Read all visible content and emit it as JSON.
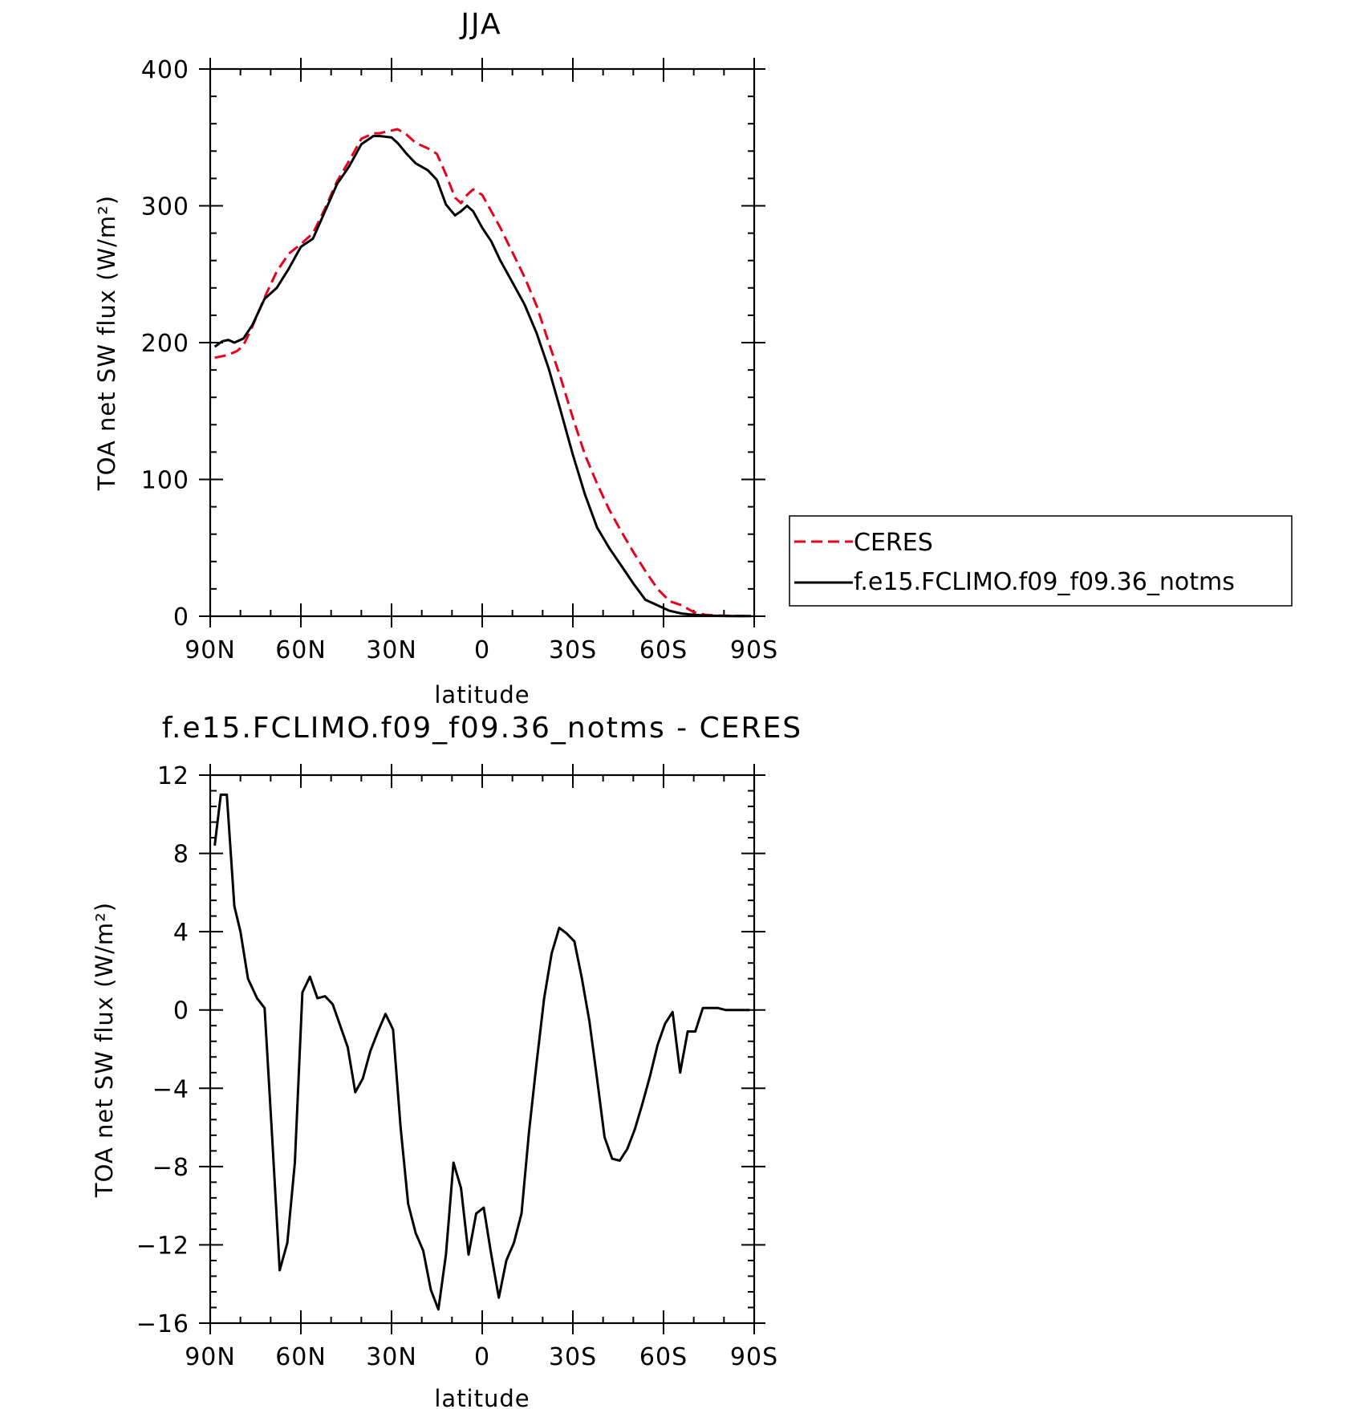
{
  "chart_data": [
    {
      "type": "line",
      "title": "JJA",
      "xlabel": "latitude",
      "ylabel": "TOA net SW flux (W/m²)",
      "xlim": [
        90,
        -90
      ],
      "ylim": [
        0,
        400
      ],
      "x_tick_labels": [
        "90N",
        "60N",
        "30N",
        "0",
        "30S",
        "60S",
        "90S"
      ],
      "x_tick_values": [
        90,
        60,
        30,
        0,
        -30,
        -60,
        -90
      ],
      "y_tick_labels": [
        "0",
        "100",
        "200",
        "300",
        "400"
      ],
      "y_tick_values": [
        0,
        100,
        200,
        300,
        400
      ],
      "legend_position": "right, outside plot",
      "series": [
        {
          "name": "CERES",
          "color": "#e8001c",
          "dash": "dashed",
          "x": [
            88.5,
            84,
            81,
            79,
            76,
            72,
            68,
            64,
            60,
            56,
            52,
            48,
            44,
            40,
            36,
            34,
            30,
            28,
            25,
            22,
            18,
            15,
            12,
            9,
            7,
            5,
            3,
            0,
            -3,
            -6,
            -10,
            -14,
            -18,
            -22,
            -26,
            -30,
            -34,
            -38,
            -42,
            -46,
            -50,
            -54,
            -58,
            -62,
            -66,
            -70,
            -74,
            -78,
            -82,
            -86,
            -89
          ],
          "y": [
            189,
            191,
            194,
            198,
            212,
            233,
            252,
            265,
            272,
            280,
            298,
            318,
            333,
            349,
            353,
            353,
            355,
            356,
            352,
            346,
            342,
            338,
            323,
            306,
            302,
            308,
            312,
            308,
            296,
            284,
            266,
            248,
            227,
            200,
            174,
            145,
            118,
            97,
            78,
            62,
            47,
            33,
            20,
            11,
            8,
            3,
            1,
            0.5,
            0.3,
            0.2,
            0.2
          ],
          "values_note": null
        },
        {
          "name": "f.e15.FCLIMO.f09_f09.36_notms",
          "color": "#000000",
          "dash": "solid",
          "x": [
            88.5,
            86,
            84,
            82,
            79,
            76,
            72,
            68,
            64,
            60,
            56,
            52,
            48,
            44,
            40,
            36,
            34,
            30,
            28,
            25,
            22,
            18,
            15,
            12,
            9,
            7,
            5,
            3,
            0,
            -3,
            -6,
            -10,
            -14,
            -18,
            -22,
            -26,
            -30,
            -34,
            -38,
            -42,
            -46,
            -50,
            -54,
            -58,
            -62,
            -66,
            -70,
            -74,
            -78,
            -82,
            -86,
            -89
          ],
          "y": [
            197,
            201,
            202,
            200,
            203,
            213,
            232,
            240,
            254,
            270,
            276,
            296,
            316,
            329,
            345,
            351,
            351,
            350,
            346,
            338,
            331,
            326,
            319,
            301,
            293,
            296,
            300,
            296,
            284,
            274,
            260,
            244,
            228,
            207,
            181,
            150,
            118,
            89,
            65,
            50,
            37,
            24,
            12,
            8,
            4,
            2,
            1,
            0.5,
            0.3,
            0.2,
            0.2,
            0.2
          ],
          "values_note": null
        }
      ]
    },
    {
      "type": "line",
      "title": "f.e15.FCLIMO.f09_f09.36_notms - CERES",
      "xlabel": "latitude",
      "ylabel": "TOA net SW flux (W/m²)",
      "xlim": [
        90,
        -90
      ],
      "ylim": [
        -16,
        12
      ],
      "x_tick_labels": [
        "90N",
        "60N",
        "30N",
        "0",
        "30S",
        "60S",
        "90S"
      ],
      "x_tick_values": [
        90,
        60,
        30,
        0,
        -30,
        -60,
        -90
      ],
      "y_tick_labels": [
        "−16",
        "−12",
        "−8",
        "−4",
        "0",
        "4",
        "8",
        "12"
      ],
      "y_tick_values": [
        -16,
        -12,
        -8,
        -4,
        0,
        4,
        8,
        12
      ],
      "series": [
        {
          "name": "",
          "color": "#000000",
          "dash": "solid",
          "x": [
            88.5,
            86.5,
            84.5,
            82,
            80,
            77.5,
            74.5,
            72,
            69.5,
            67,
            64.5,
            62,
            59.5,
            57,
            54.5,
            52,
            49.5,
            47,
            44.5,
            42,
            39.5,
            37,
            34.5,
            32,
            29.5,
            27,
            24.5,
            22,
            19.5,
            17,
            14.5,
            12,
            9.5,
            7,
            4.5,
            2,
            -0.5,
            -3,
            -5.5,
            -8,
            -10.5,
            -13,
            -15.5,
            -18,
            -20.5,
            -23,
            -25.5,
            -28,
            -30.5,
            -33,
            -35.5,
            -38,
            -40.5,
            -43,
            -45.5,
            -48,
            -50.5,
            -53,
            -55.5,
            -58,
            -60.5,
            -63,
            -65.5,
            -68,
            -70.5,
            -73,
            -75.5,
            -78,
            -80.5,
            -83,
            -85.5,
            -88.5
          ],
          "y": [
            8.4,
            11,
            11,
            5.3,
            4,
            1.6,
            0.6,
            0.1,
            -6.5,
            -13.3,
            -11.9,
            -7.8,
            0.9,
            1.7,
            0.6,
            0.7,
            0.3,
            -0.8,
            -1.9,
            -4.2,
            -3.5,
            -2.1,
            -1.1,
            -0.2,
            -1,
            -6,
            -9.9,
            -11.4,
            -12.3,
            -14.3,
            -15.3,
            -12.5,
            -7.8,
            -9.1,
            -12.5,
            -10.4,
            -10.1,
            -12.5,
            -14.7,
            -12.8,
            -11.9,
            -10.4,
            -6.2,
            -2.7,
            0.6,
            2.9,
            4.2,
            3.9,
            3.5,
            1.6,
            -0.6,
            -3.5,
            -6.5,
            -7.6,
            -7.7,
            -7.1,
            -6.1,
            -4.8,
            -3.4,
            -1.8,
            -0.7,
            -0.1,
            -3.2,
            -1.1,
            -1.1,
            0.1,
            0.1,
            0.1,
            0,
            0,
            0,
            0
          ],
          "values_note": null
        }
      ]
    }
  ]
}
